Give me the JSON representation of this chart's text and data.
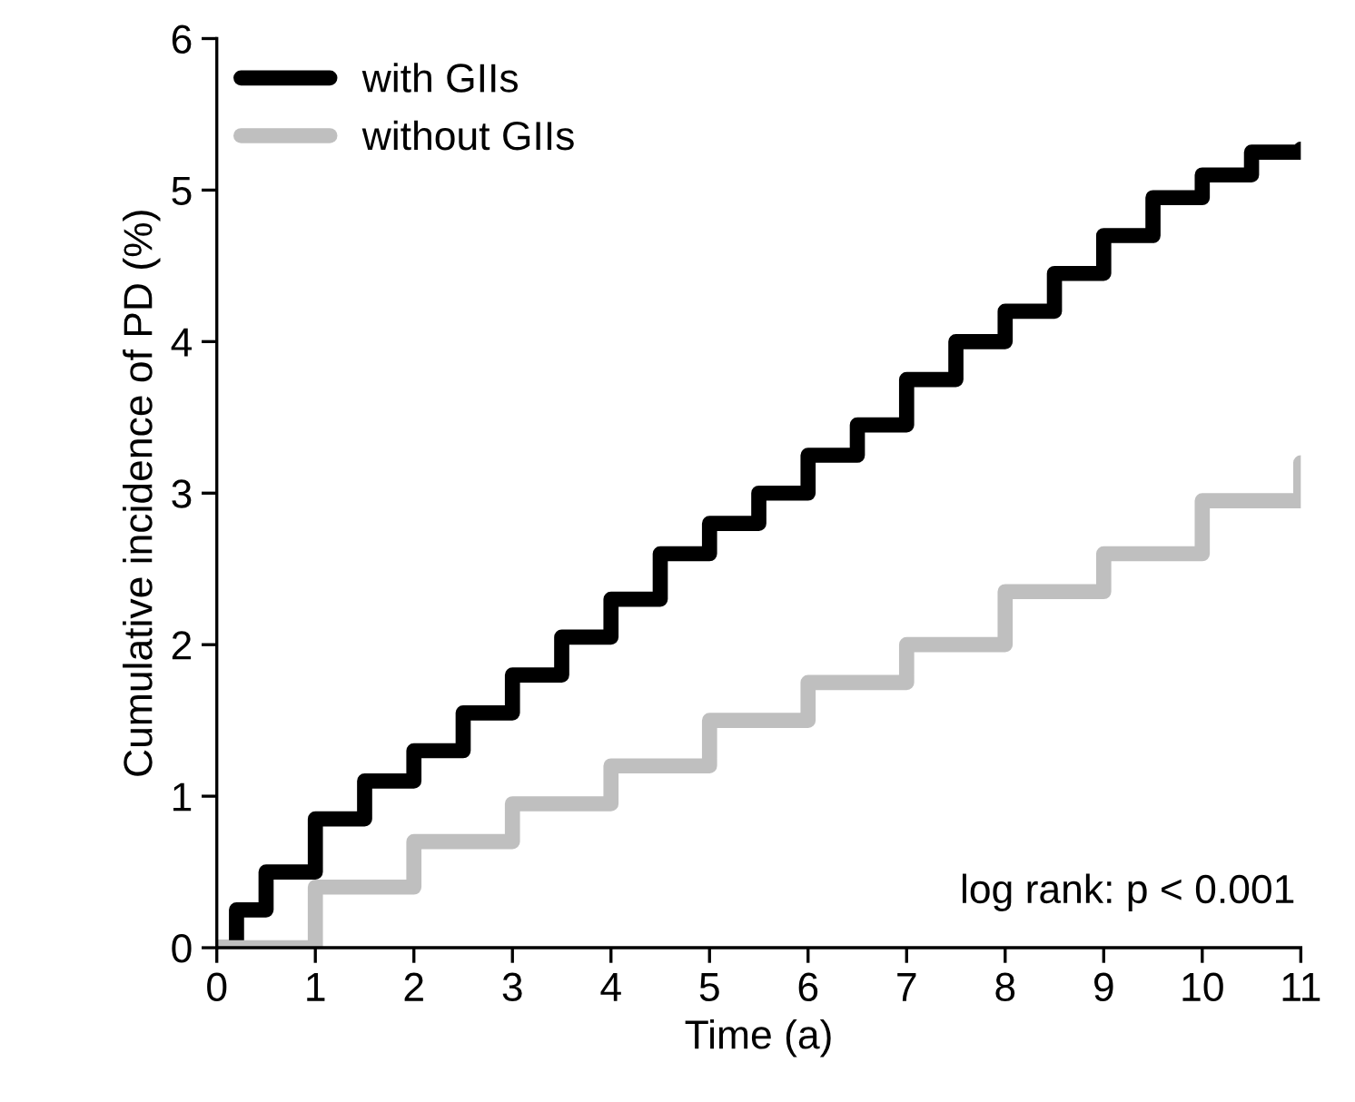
{
  "chart_data": {
    "type": "step",
    "xlabel": "Time (a)",
    "ylabel": "Cumulative incidence of PD (%)",
    "xlim": [
      0,
      11
    ],
    "ylim": [
      0,
      6
    ],
    "xticks": [
      0,
      1,
      2,
      3,
      4,
      5,
      6,
      7,
      8,
      9,
      10,
      11
    ],
    "yticks": [
      0,
      1,
      2,
      3,
      4,
      5,
      6
    ],
    "grid": false,
    "legend": "top left",
    "line_style": "solid",
    "marker": "none",
    "annotations": [
      "log rank: p < 0.001"
    ],
    "series": [
      {
        "name": "with GIIs",
        "color": "#000000",
        "x": [
          0,
          0.2,
          0.5,
          1,
          1.5,
          2,
          2.5,
          3,
          3.5,
          4,
          4.5,
          5,
          5.5,
          6,
          6.5,
          7,
          7.5,
          8,
          8.5,
          9,
          9.5,
          10,
          10.5,
          11
        ],
        "values": [
          0,
          0.25,
          0.5,
          0.85,
          1.1,
          1.3,
          1.55,
          1.8,
          2.05,
          2.3,
          2.6,
          2.8,
          3.0,
          3.25,
          3.45,
          3.75,
          4.0,
          4.2,
          4.45,
          4.7,
          4.95,
          5.1,
          5.25,
          5.27
        ]
      },
      {
        "name": "without GIIs",
        "color": "#bfbfbf",
        "x": [
          0,
          1,
          2,
          3,
          4,
          5,
          6,
          7,
          8,
          9,
          10,
          11
        ],
        "values": [
          0,
          0.4,
          0.7,
          0.95,
          1.2,
          1.5,
          1.75,
          2.0,
          2.35,
          2.6,
          2.95,
          3.2
        ]
      }
    ]
  }
}
